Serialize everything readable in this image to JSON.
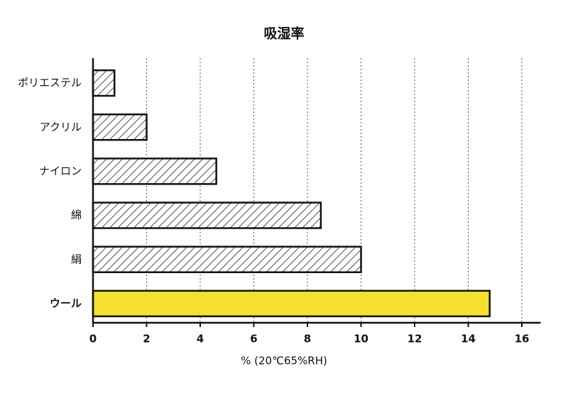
{
  "chart_data": {
    "type": "bar",
    "orientation": "horizontal",
    "title": "吸湿率",
    "categories": [
      "ポリエステル",
      "アクリル",
      "ナイロン",
      "綿",
      "絹",
      "ウール"
    ],
    "values": [
      0.8,
      2.0,
      4.6,
      8.5,
      10.0,
      14.8
    ],
    "colors": [
      "#ffffff",
      "#ffffff",
      "#ffffff",
      "#ffffff",
      "#ffffff",
      "#f5e02e"
    ],
    "hatch": [
      true,
      true,
      true,
      true,
      true,
      false
    ],
    "xlabel": "% (20℃65%RH)",
    "xlim": [
      0,
      16.7
    ],
    "xticks": [
      0,
      2,
      4,
      6,
      8,
      10,
      12,
      14,
      16
    ],
    "grid": true
  }
}
